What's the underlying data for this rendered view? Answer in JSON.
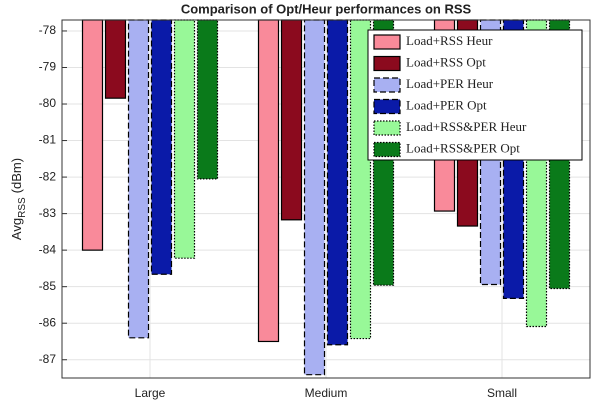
{
  "chart_data": {
    "type": "bar",
    "title": "Comparison of Opt/Heur performances on RSS",
    "ylabel": {
      "main": "Avg",
      "sub": "RSS",
      "rest": "(dBm)"
    },
    "categories": [
      "Large",
      "Medium",
      "Small"
    ],
    "series": [
      {
        "name": "Load+RSS Heur",
        "color": "#f98a9a",
        "linestyle": "solid",
        "values": [
          -84.0,
          -86.5,
          -82.93
        ]
      },
      {
        "name": "Load+RSS Opt",
        "color": "#8b0a1e",
        "linestyle": "solid",
        "values": [
          -79.84,
          -83.17,
          -83.34
        ]
      },
      {
        "name": "Load+PER Heur",
        "color": "#a8b0f2",
        "linestyle": "dashed",
        "values": [
          -86.4,
          -87.41,
          -84.94
        ]
      },
      {
        "name": "Load+PER Opt",
        "color": "#0a1aa8",
        "linestyle": "dashed",
        "values": [
          -84.66,
          -86.59,
          -85.32
        ]
      },
      {
        "name": "Load+RSS&PER Heur",
        "color": "#98f898",
        "linestyle": "dotted",
        "values": [
          -84.22,
          -86.42,
          -86.09
        ]
      },
      {
        "name": "Load+RSS&PER Opt",
        "color": "#0a7a1a",
        "linestyle": "dotted",
        "values": [
          -82.05,
          -84.96,
          -85.05
        ]
      }
    ],
    "ylim": [
      -87.5,
      -77.7
    ],
    "yticks": [
      -87,
      -86,
      -85,
      -84,
      -83,
      -82,
      -81,
      -80,
      -79,
      -78
    ],
    "grid": true,
    "legend": "upper right"
  }
}
